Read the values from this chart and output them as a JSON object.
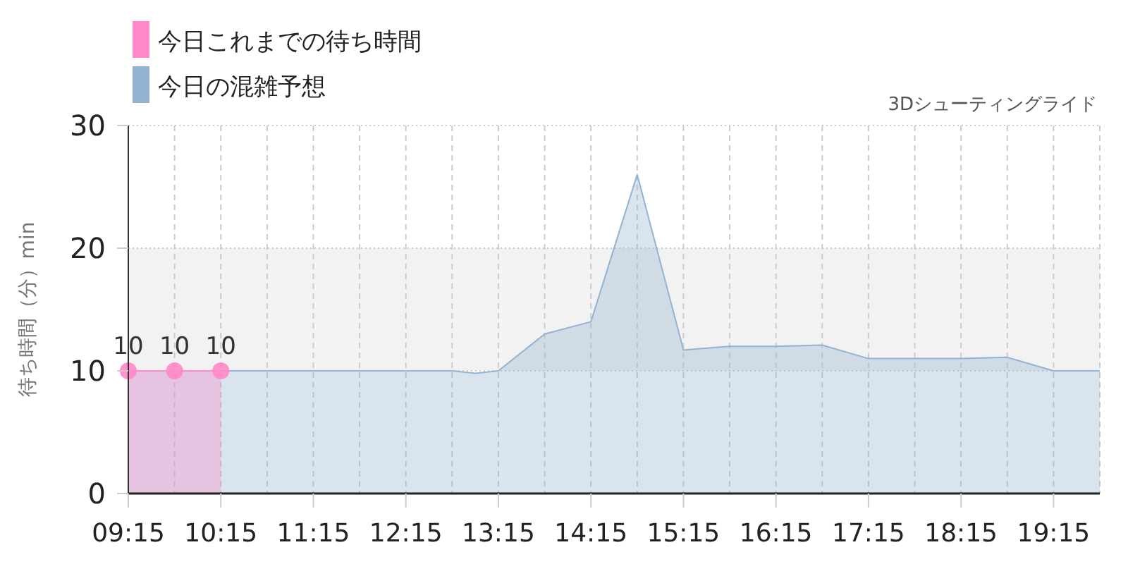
{
  "chart_data": {
    "type": "area",
    "ylabel": "待ち時間（分）min",
    "annotations": [
      "3Dシューティングライド"
    ],
    "xlim": [
      9.25,
      19.75
    ],
    "ylim": [
      0,
      30
    ],
    "xticks": [
      {
        "value": 9.25,
        "label": "09:15"
      },
      {
        "value": 9.75,
        "label": null
      },
      {
        "value": 10.25,
        "label": "10:15"
      },
      {
        "value": 10.75,
        "label": null
      },
      {
        "value": 11.25,
        "label": "11:15"
      },
      {
        "value": 11.75,
        "label": null
      },
      {
        "value": 12.25,
        "label": "12:15"
      },
      {
        "value": 12.75,
        "label": null
      },
      {
        "value": 13.25,
        "label": "13:15"
      },
      {
        "value": 13.75,
        "label": null
      },
      {
        "value": 14.25,
        "label": "14:15"
      },
      {
        "value": 14.75,
        "label": null
      },
      {
        "value": 15.25,
        "label": "15:15"
      },
      {
        "value": 15.75,
        "label": null
      },
      {
        "value": 16.25,
        "label": "16:15"
      },
      {
        "value": 16.75,
        "label": null
      },
      {
        "value": 17.25,
        "label": "17:15"
      },
      {
        "value": 17.75,
        "label": null
      },
      {
        "value": 18.25,
        "label": "18:15"
      },
      {
        "value": 18.75,
        "label": null
      },
      {
        "value": 19.25,
        "label": "19:15"
      },
      {
        "value": 19.75,
        "label": null
      }
    ],
    "yticks": [
      0,
      10,
      20,
      30
    ],
    "grid": true,
    "legend": "top left",
    "bands": [
      {
        "axis": "y",
        "from": 10,
        "to": 20,
        "color": "#f2f2f2"
      }
    ],
    "series": [
      {
        "name": "今日これまでの待ち時間",
        "color": "#ff88c8",
        "marker": "circle",
        "x": [
          9.25,
          9.75,
          10.25
        ],
        "values": [
          10,
          10,
          10
        ],
        "value_labels": [
          "10",
          "10",
          "10"
        ]
      },
      {
        "name": "今日の混雑予想",
        "color": "#93b3d2",
        "marker": "none",
        "x": [
          9.25,
          9.75,
          10.25,
          10.75,
          11.25,
          11.75,
          12.25,
          12.75,
          13.0,
          13.25,
          13.75,
          14.25,
          14.75,
          15.25,
          15.75,
          16.25,
          16.75,
          17.25,
          17.75,
          18.25,
          18.75,
          19.25,
          19.75
        ],
        "values": [
          10,
          10,
          10,
          10,
          10,
          10,
          10,
          10,
          9.8,
          10,
          13,
          14,
          26,
          11.7,
          12,
          12,
          12.1,
          11,
          11,
          11,
          11.1,
          10,
          10
        ]
      }
    ]
  }
}
